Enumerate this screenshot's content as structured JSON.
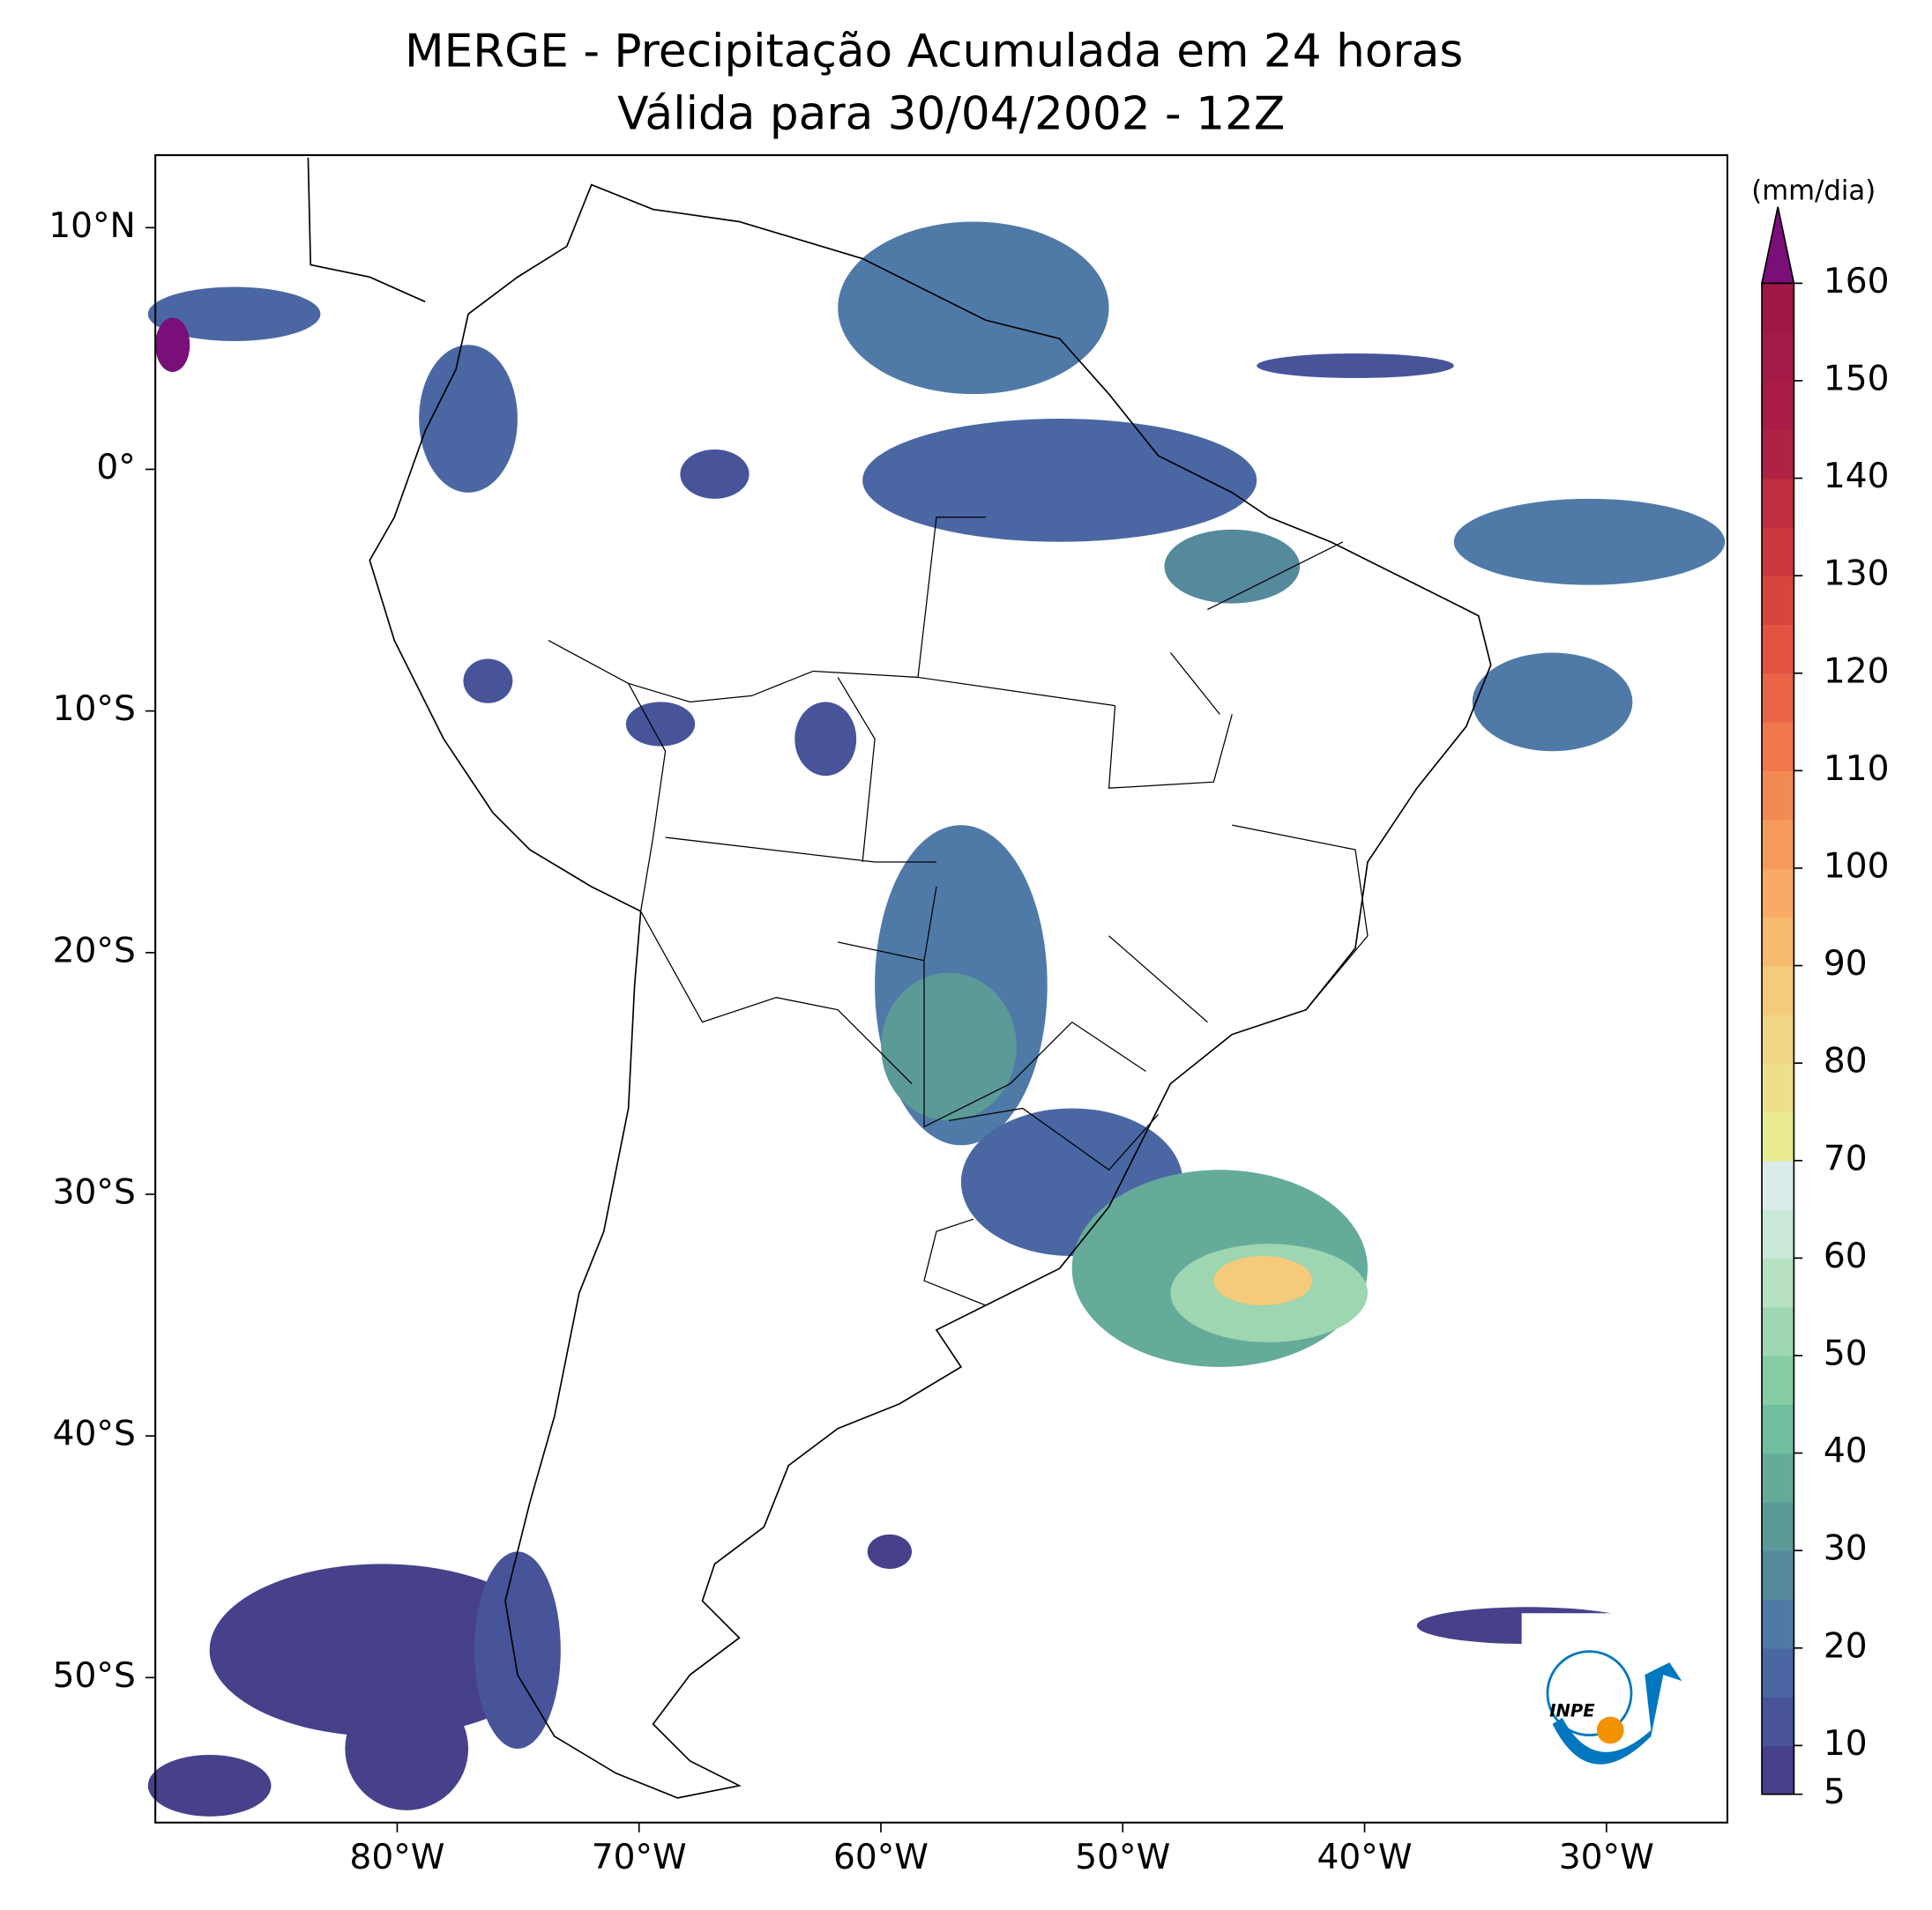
{
  "map": {
    "title": [
      "MERGE - Precipitação Acumulada em 24 horas",
      "Válida para 30/04/2002 - 12Z"
    ],
    "lonlim": [
      -90,
      -25
    ],
    "latlim": [
      -56,
      13
    ],
    "lon_ticks": [
      {
        "value": -80,
        "label": "80°W"
      },
      {
        "value": -70,
        "label": "70°W"
      },
      {
        "value": -60,
        "label": "60°W"
      },
      {
        "value": -50,
        "label": "50°W"
      },
      {
        "value": -40,
        "label": "40°W"
      },
      {
        "value": -30,
        "label": "30°W"
      }
    ],
    "lat_ticks": [
      {
        "value": 10,
        "label": "10°N"
      },
      {
        "value": 0,
        "label": "0°"
      },
      {
        "value": -10,
        "label": "10°S"
      },
      {
        "value": -20,
        "label": "20°S"
      },
      {
        "value": -30,
        "label": "30°S"
      },
      {
        "value": -40,
        "label": "40°S"
      },
      {
        "value": -50,
        "label": "50°S"
      }
    ],
    "logo": "INPE"
  },
  "colorbar": {
    "label": "(mm/dia)",
    "lim": [
      5,
      160
    ],
    "ticks": [
      5,
      10,
      20,
      30,
      40,
      50,
      60,
      70,
      80,
      90,
      100,
      110,
      120,
      130,
      140,
      150,
      160
    ],
    "colors": [
      "#46418a",
      "#48549a",
      "#4a67a4",
      "#4f7aa8",
      "#55899c",
      "#5c9a98",
      "#65ab9a",
      "#72bf9f",
      "#86cca4",
      "#9dd6b0",
      "#b5e0c2",
      "#cae8d6",
      "#d9ecea",
      "#e8eb8f",
      "#eee08a",
      "#f2d582",
      "#f5ca7a",
      "#f7bb6e",
      "#f8ab64",
      "#f79b5c",
      "#f48a53",
      "#f0784c",
      "#ea6546",
      "#e25441",
      "#d8453d",
      "#cb383d",
      "#be2d40",
      "#b02244",
      "#a81c45",
      "#a51946",
      "#9f1746"
    ],
    "extend_color": "#7a0f7a"
  }
}
